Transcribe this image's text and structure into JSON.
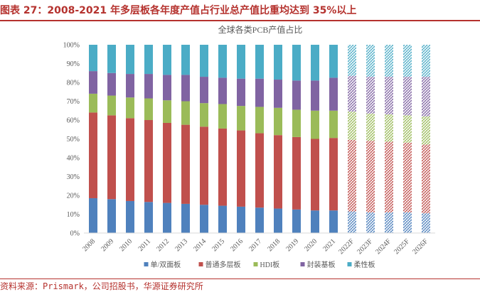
{
  "figure_title": "图表 27：2008-2021 年多层板各年度产值占行业总产值比重均达到 35%以上",
  "source_note": "资料来源：Prismark，公司招股书，华源证券研究所",
  "colors": {
    "single_double": "#4F81BD",
    "multilayer": "#C0504D",
    "hdi": "#9BBB59",
    "substrate": "#8064A2",
    "flexible": "#4BACC6",
    "title_red": "#B5322E"
  },
  "chart_data": {
    "type": "bar",
    "stacked": true,
    "title": "全球各类PCB产值占比",
    "categories": [
      "2008",
      "2009",
      "2010",
      "2011",
      "2012",
      "2013",
      "2014",
      "2015",
      "2016",
      "2017",
      "2018",
      "2019",
      "2020",
      "2021",
      "2022F",
      "2023F",
      "2024F",
      "2025F",
      "2026F"
    ],
    "forecast_categories": [
      "2022F",
      "2023F",
      "2024F",
      "2025F",
      "2026F"
    ],
    "ylim": [
      0,
      100
    ],
    "yticks": [
      "0%",
      "10%",
      "20%",
      "30%",
      "40%",
      "50%",
      "60%",
      "70%",
      "80%",
      "90%",
      "100%"
    ],
    "legend_position": "bottom",
    "series": [
      {
        "name": "单/双面板",
        "color_key": "single_double",
        "values": [
          18.5,
          18,
          17,
          16.5,
          16,
          15.5,
          15,
          14.5,
          14,
          13.5,
          13,
          12.5,
          12,
          12,
          11.5,
          11,
          11,
          11,
          10.5
        ]
      },
      {
        "name": "普通多层板",
        "color_key": "multilayer",
        "values": [
          45.5,
          44.5,
          44,
          43.5,
          42.5,
          42,
          41.5,
          41,
          40.5,
          39.5,
          39,
          38.5,
          38,
          38.5,
          38,
          38,
          37.5,
          37,
          36.5
        ]
      },
      {
        "name": "HDI板",
        "color_key": "hdi",
        "values": [
          10,
          10.5,
          11,
          11.5,
          12,
          12.5,
          12.5,
          13,
          13,
          14,
          14.5,
          14.5,
          15,
          14.5,
          15,
          14.5,
          14.5,
          14.5,
          15
        ]
      },
      {
        "name": "封装基板",
        "color_key": "substrate",
        "values": [
          12,
          12,
          12.5,
          13,
          13.5,
          14,
          14,
          14,
          14.5,
          15,
          15,
          15.5,
          16,
          17.5,
          19,
          19.5,
          20,
          20.5,
          21
        ]
      },
      {
        "name": "柔性板",
        "color_key": "flexible",
        "values": [
          14,
          15,
          15.5,
          15.5,
          16,
          16,
          17,
          17.5,
          18,
          18,
          18.5,
          19,
          19,
          17.5,
          16.5,
          17,
          17,
          17,
          17
        ]
      }
    ]
  }
}
